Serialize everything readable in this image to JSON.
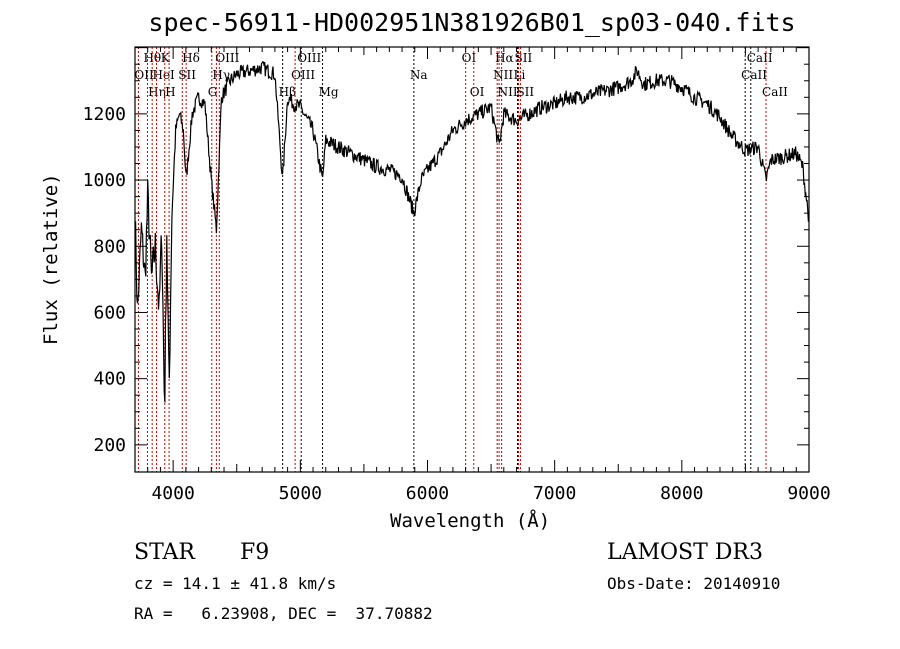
{
  "chart_data": {
    "type": "line",
    "title": "spec-56911-HD002951N381926B01_sp03-040.fits",
    "xlabel": "Wavelength (Å)",
    "ylabel": "Flux (relative)",
    "xlim": [
      3700,
      9000
    ],
    "ylim": [
      118,
      1402
    ],
    "xticks": [
      4000,
      5000,
      6000,
      7000,
      8000,
      9000
    ],
    "yticks": [
      200,
      400,
      600,
      800,
      1000,
      1200
    ],
    "grid": false,
    "series": [
      {
        "name": "spectrum",
        "color": "#000000",
        "points": [
          [
            3700,
            900
          ],
          [
            3720,
            600
          ],
          [
            3750,
            850
          ],
          [
            3780,
            700
          ],
          [
            3800,
            950
          ],
          [
            3830,
            700
          ],
          [
            3860,
            800
          ],
          [
            3890,
            600
          ],
          [
            3910,
            850
          ],
          [
            3933,
            300
          ],
          [
            3950,
            850
          ],
          [
            3968,
            350
          ],
          [
            3990,
            900
          ],
          [
            4020,
            1150
          ],
          [
            4050,
            1200
          ],
          [
            4080,
            1150
          ],
          [
            4102,
            1000
          ],
          [
            4150,
            1200
          ],
          [
            4200,
            1250
          ],
          [
            4250,
            1230
          ],
          [
            4300,
            1000
          ],
          [
            4340,
            850
          ],
          [
            4380,
            1250
          ],
          [
            4450,
            1300
          ],
          [
            4500,
            1320
          ],
          [
            4600,
            1330
          ],
          [
            4700,
            1340
          ],
          [
            4800,
            1320
          ],
          [
            4861,
            1000
          ],
          [
            4900,
            1250
          ],
          [
            4950,
            1230
          ],
          [
            5000,
            1220
          ],
          [
            5100,
            1150
          ],
          [
            5175,
            1000
          ],
          [
            5200,
            1120
          ],
          [
            5300,
            1100
          ],
          [
            5400,
            1080
          ],
          [
            5500,
            1060
          ],
          [
            5600,
            1040
          ],
          [
            5700,
            1030
          ],
          [
            5800,
            1010
          ],
          [
            5893,
            900
          ],
          [
            5950,
            1000
          ],
          [
            6000,
            1030
          ],
          [
            6100,
            1080
          ],
          [
            6200,
            1150
          ],
          [
            6300,
            1180
          ],
          [
            6400,
            1200
          ],
          [
            6500,
            1220
          ],
          [
            6563,
            1100
          ],
          [
            6600,
            1200
          ],
          [
            6700,
            1180
          ],
          [
            6800,
            1200
          ],
          [
            6900,
            1220
          ],
          [
            7000,
            1230
          ],
          [
            7100,
            1250
          ],
          [
            7200,
            1250
          ],
          [
            7300,
            1260
          ],
          [
            7400,
            1270
          ],
          [
            7500,
            1280
          ],
          [
            7600,
            1300
          ],
          [
            7650,
            1330
          ],
          [
            7700,
            1290
          ],
          [
            7800,
            1300
          ],
          [
            7900,
            1300
          ],
          [
            8000,
            1280
          ],
          [
            8100,
            1250
          ],
          [
            8200,
            1230
          ],
          [
            8300,
            1190
          ],
          [
            8400,
            1130
          ],
          [
            8500,
            1090
          ],
          [
            8600,
            1100
          ],
          [
            8662,
            1000
          ],
          [
            8700,
            1060
          ],
          [
            8800,
            1070
          ],
          [
            8900,
            1080
          ],
          [
            8950,
            1040
          ],
          [
            9000,
            880
          ]
        ]
      }
    ],
    "lines": [
      {
        "wl": 3727,
        "label": "OII",
        "row": 1,
        "color": "#cc0000"
      },
      {
        "wl": 3798,
        "label": "Hθ",
        "row": 0,
        "color": "#cc0000"
      },
      {
        "wl": 3835,
        "label": "Hη",
        "row": 2,
        "color": "#cc0000"
      },
      {
        "wl": 3869,
        "label": "HeI",
        "row": 1,
        "color": "#cc0000"
      },
      {
        "wl": 3934,
        "label": "K",
        "row": 0,
        "color": "#cc0000"
      },
      {
        "wl": 3968,
        "label": "H",
        "row": 2,
        "color": "#cc0000"
      },
      {
        "wl": 4072,
        "label": "SII",
        "row": 1,
        "color": "#cc0000"
      },
      {
        "wl": 4102,
        "label": "Hδ",
        "row": 0,
        "color": "#cc0000"
      },
      {
        "wl": 4304,
        "label": "G",
        "row": 2,
        "color": "#cc0000"
      },
      {
        "wl": 4340,
        "label": "Hγ",
        "row": 1,
        "color": "#cc0000"
      },
      {
        "wl": 4363,
        "label": "OIII",
        "row": 0,
        "color": "#cc0000"
      },
      {
        "wl": 4861,
        "label": "Hβ",
        "row": 2,
        "color": "#000000"
      },
      {
        "wl": 4959,
        "label": "OIII",
        "row": 1,
        "color": "#cc0000"
      },
      {
        "wl": 5007,
        "label": "OIII",
        "row": 0,
        "color": "#000000"
      },
      {
        "wl": 5175,
        "label": "Mg",
        "row": 2,
        "color": "#000000"
      },
      {
        "wl": 5893,
        "label": "Na",
        "row": 1,
        "color": "#000000"
      },
      {
        "wl": 6300,
        "label": "OI",
        "row": 0,
        "color": "#cc0000"
      },
      {
        "wl": 6364,
        "label": "OI",
        "row": 2,
        "color": "#cc0000"
      },
      {
        "wl": 6548,
        "label": "NII",
        "row": 1,
        "color": "#cc0000"
      },
      {
        "wl": 6563,
        "label": "Hα",
        "row": 0,
        "color": "#cc0000"
      },
      {
        "wl": 6583,
        "label": "NII",
        "row": 2,
        "color": "#cc0000"
      },
      {
        "wl": 6708,
        "label": "Li",
        "row": 1,
        "color": "#000000"
      },
      {
        "wl": 6716,
        "label": "SII",
        "row": 0,
        "color": "#cc0000"
      },
      {
        "wl": 6731,
        "label": "SII",
        "row": 2,
        "color": "#cc0000"
      },
      {
        "wl": 8498,
        "label": "CaII",
        "row": 1,
        "color": "#000000"
      },
      {
        "wl": 8542,
        "label": "CaII",
        "row": 0,
        "color": "#000000"
      },
      {
        "wl": 8662,
        "label": "CaII",
        "row": 2,
        "color": "#cc0000"
      }
    ]
  },
  "info": {
    "class": "STAR",
    "subclass": "F9",
    "survey": "LAMOST DR3",
    "cz": "cz = 14.1 ± 41.8 km/s",
    "obs_date": "Obs-Date: 20140910",
    "radec": "RA =   6.23908, DEC =  37.70882"
  }
}
